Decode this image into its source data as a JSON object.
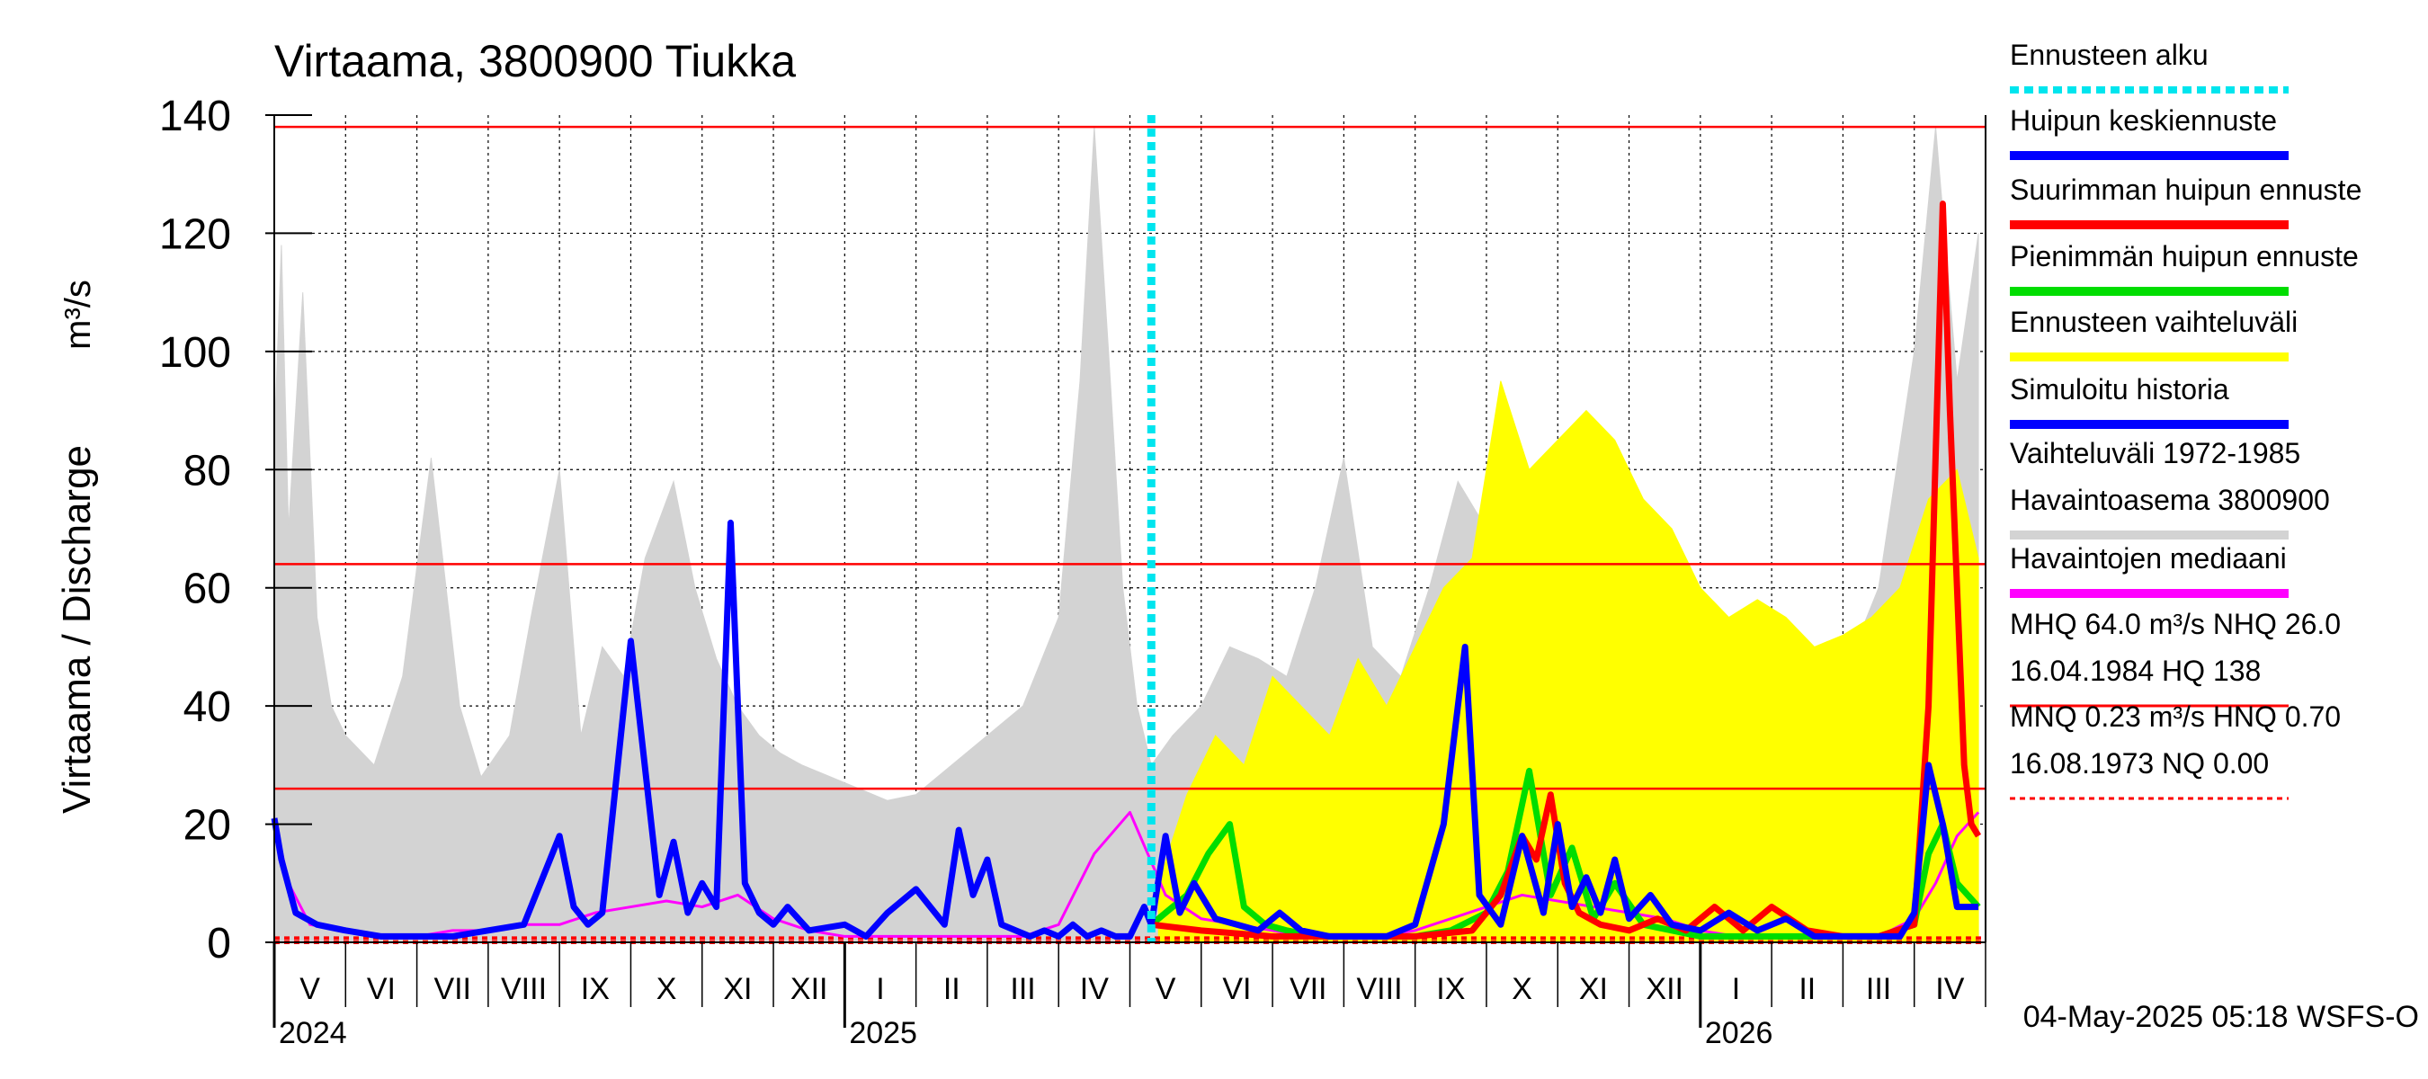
{
  "chart_data": {
    "type": "area+line",
    "title": "Virtaama, 3800900 Tiukka",
    "ylabel": "Virtaama / Discharge",
    "yunit": "m³/s",
    "ylim": [
      0,
      140
    ],
    "yticks": [
      0,
      20,
      40,
      60,
      80,
      100,
      120,
      140
    ],
    "months": [
      "V",
      "VI",
      "VII",
      "VIII",
      "IX",
      "X",
      "XI",
      "XII",
      "I",
      "II",
      "III",
      "IV",
      "V",
      "VI",
      "VII",
      "VIII",
      "IX",
      "X",
      "XI",
      "XII",
      "I",
      "II",
      "III",
      "IV"
    ],
    "years": [
      {
        "label": "2024",
        "month_index": 0
      },
      {
        "label": "2025",
        "month_index": 8
      },
      {
        "label": "2026",
        "month_index": 20
      }
    ],
    "forecast_start_month": 12.3,
    "reference_lines": [
      {
        "name": "HQ",
        "value": 138,
        "color": "#ff0000"
      },
      {
        "name": "MHQ",
        "value": 64.0,
        "color": "#ff0000"
      },
      {
        "name": "NHQ",
        "value": 26.0,
        "color": "#ff0000"
      },
      {
        "name": "HNQ",
        "value": 0.7,
        "color": "#ff0000",
        "dashed": true
      },
      {
        "name": "NQ",
        "value": 0.0,
        "color": "#ff0000",
        "dashed": true
      }
    ],
    "series": [
      {
        "name": "Vaihteluväli 1972-1985 Havaintoasema 3800900",
        "color": "#d3d3d3",
        "kind": "band",
        "x": [
          0,
          0.1,
          0.2,
          0.4,
          0.6,
          0.8,
          1.0,
          1.4,
          1.8,
          2.2,
          2.6,
          2.9,
          3.3,
          3.6,
          4.0,
          4.3,
          4.6,
          4.9,
          5.2,
          5.6,
          5.9,
          6.2,
          6.5,
          6.8,
          7.1,
          7.4,
          7.8,
          8.2,
          8.6,
          9.0,
          9.5,
          10.0,
          10.5,
          11.0,
          11.3,
          11.5,
          11.7,
          11.9,
          12.1,
          12.3,
          12.6,
          13.0,
          13.4,
          13.8,
          14.2,
          14.6,
          15.0,
          15.4,
          15.8,
          16.2,
          16.6,
          17.0,
          17.4,
          17.8,
          18.2,
          18.6,
          19.0,
          19.4,
          19.8,
          20.2,
          20.6,
          21.0,
          21.5,
          22.0,
          22.5,
          23.0,
          23.3,
          23.6,
          23.9
        ],
        "values": [
          85,
          118,
          70,
          110,
          55,
          40,
          35,
          30,
          45,
          82,
          40,
          28,
          35,
          55,
          80,
          35,
          50,
          45,
          65,
          78,
          60,
          48,
          40,
          35,
          32,
          30,
          28,
          26,
          24,
          25,
          30,
          35,
          40,
          55,
          95,
          138,
          100,
          60,
          40,
          30,
          35,
          40,
          50,
          48,
          45,
          60,
          82,
          50,
          45,
          60,
          78,
          70,
          55,
          60,
          65,
          50,
          45,
          52,
          40,
          45,
          35,
          40,
          50,
          45,
          60,
          100,
          138,
          95,
          120
        ]
      },
      {
        "name": "Ennusteen vaihteluväli",
        "color": "#ffff00",
        "kind": "band",
        "x": [
          12.4,
          12.8,
          13.2,
          13.6,
          14.0,
          14.4,
          14.8,
          15.2,
          15.6,
          16.0,
          16.4,
          16.8,
          17.2,
          17.6,
          18.0,
          18.4,
          18.8,
          19.2,
          19.6,
          20.0,
          20.4,
          20.8,
          21.2,
          21.6,
          22.0,
          22.4,
          22.8,
          23.2,
          23.6,
          23.9
        ],
        "values": [
          10,
          25,
          35,
          30,
          45,
          40,
          35,
          48,
          40,
          50,
          60,
          65,
          95,
          80,
          85,
          90,
          85,
          75,
          70,
          60,
          55,
          58,
          55,
          50,
          52,
          55,
          60,
          75,
          80,
          65
        ]
      },
      {
        "name": "Havaintojen mediaani",
        "color": "#ff00ff",
        "kind": "line",
        "x": [
          0,
          0.2,
          0.5,
          1.0,
          1.5,
          2.0,
          2.5,
          3.0,
          3.5,
          4.0,
          4.5,
          5.0,
          5.5,
          6.0,
          6.5,
          7.0,
          7.5,
          8.0,
          8.5,
          9.0,
          9.5,
          10.0,
          10.5,
          11.0,
          11.5,
          12.0,
          12.5,
          13.0,
          13.5,
          14.0,
          14.5,
          15.0,
          15.5,
          16.0,
          16.5,
          17.0,
          17.5,
          18.0,
          18.5,
          19.0,
          19.5,
          20.0,
          20.5,
          21.0,
          21.5,
          22.0,
          22.5,
          23.0,
          23.3,
          23.6,
          23.9
        ],
        "values": [
          21,
          10,
          3,
          2,
          1,
          1,
          2,
          2,
          3,
          3,
          5,
          6,
          7,
          6,
          8,
          4,
          2,
          1,
          1,
          1,
          1,
          1,
          1,
          3,
          15,
          22,
          8,
          4,
          3,
          2,
          1,
          1,
          1,
          2,
          4,
          6,
          8,
          7,
          6,
          5,
          4,
          2,
          1,
          1,
          1,
          1,
          1,
          4,
          10,
          18,
          22
        ]
      },
      {
        "name": "Simuloitu historia",
        "color": "#0000ff",
        "kind": "line",
        "x": [
          0,
          0.1,
          0.3,
          0.6,
          1.0,
          1.5,
          2.0,
          2.5,
          3.0,
          3.5,
          4.0,
          4.2,
          4.4,
          4.6,
          5.0,
          5.4,
          5.6,
          5.8,
          6.0,
          6.2,
          6.4,
          6.6,
          6.8,
          7.0,
          7.2,
          7.5,
          8.0,
          8.3,
          8.6,
          9.0,
          9.4,
          9.6,
          9.8,
          10.0,
          10.2,
          10.4,
          10.6,
          10.8,
          11.0,
          11.2,
          11.4,
          11.6,
          11.8,
          12.0,
          12.2,
          12.3
        ],
        "values": [
          21,
          14,
          5,
          3,
          2,
          1,
          1,
          1,
          2,
          3,
          18,
          6,
          3,
          5,
          51,
          8,
          17,
          5,
          10,
          6,
          71,
          10,
          5,
          3,
          6,
          2,
          3,
          1,
          5,
          9,
          3,
          19,
          8,
          14,
          3,
          2,
          1,
          2,
          1,
          3,
          1,
          2,
          1,
          1,
          6,
          3
        ]
      },
      {
        "name": "Huipun keskiennuste",
        "color": "#0000ff",
        "kind": "line",
        "x": [
          12.3,
          12.5,
          12.7,
          12.9,
          13.2,
          13.5,
          13.8,
          14.1,
          14.4,
          14.8,
          15.2,
          15.6,
          16.0,
          16.4,
          16.7,
          16.9,
          17.2,
          17.5,
          17.8,
          18.0,
          18.2,
          18.4,
          18.6,
          18.8,
          19.0,
          19.3,
          19.6,
          20.0,
          20.4,
          20.8,
          21.2,
          21.6,
          22.0,
          22.4,
          22.8,
          23.0,
          23.2,
          23.4,
          23.6,
          23.9
        ],
        "values": [
          3,
          18,
          5,
          10,
          4,
          3,
          2,
          5,
          2,
          1,
          1,
          1,
          3,
          20,
          50,
          8,
          3,
          18,
          5,
          20,
          6,
          11,
          5,
          14,
          4,
          8,
          3,
          2,
          5,
          2,
          4,
          1,
          1,
          1,
          1,
          5,
          30,
          20,
          6,
          6
        ]
      },
      {
        "name": "Suurimman huipun ennuste",
        "color": "#ff0000",
        "kind": "line",
        "x": [
          12.3,
          13.0,
          14.0,
          15.0,
          16.0,
          16.8,
          17.2,
          17.5,
          17.7,
          17.9,
          18.1,
          18.3,
          18.6,
          19.0,
          19.4,
          19.8,
          20.2,
          20.6,
          21.0,
          21.5,
          22.0,
          22.5,
          23.0,
          23.2,
          23.4,
          23.5,
          23.6,
          23.7,
          23.8,
          23.9
        ],
        "values": [
          3,
          2,
          1,
          1,
          1,
          2,
          8,
          18,
          14,
          25,
          10,
          5,
          3,
          2,
          4,
          2,
          6,
          2,
          6,
          2,
          1,
          1,
          3,
          40,
          125,
          90,
          60,
          30,
          20,
          18
        ]
      },
      {
        "name": "Pienimmän huipun ennuste",
        "color": "#00dd00",
        "kind": "line",
        "x": [
          12.3,
          12.8,
          13.1,
          13.4,
          13.6,
          13.9,
          14.2,
          14.6,
          15.0,
          15.5,
          16.0,
          16.5,
          17.0,
          17.3,
          17.6,
          17.9,
          18.2,
          18.5,
          18.8,
          19.2,
          19.6,
          20.0,
          20.5,
          21.0,
          21.5,
          22.0,
          22.5,
          23.0,
          23.2,
          23.4,
          23.6,
          23.9
        ],
        "values": [
          3,
          8,
          15,
          20,
          6,
          3,
          2,
          1,
          1,
          1,
          1,
          2,
          5,
          12,
          29,
          8,
          16,
          4,
          10,
          3,
          2,
          1,
          1,
          1,
          1,
          1,
          1,
          3,
          15,
          20,
          10,
          6
        ]
      }
    ],
    "legend": [
      {
        "label": "Ennusteen alku",
        "color": "#00e5ee",
        "style": "dotted"
      },
      {
        "label": "Huipun keskiennuste",
        "color": "#0000ff",
        "style": "solid"
      },
      {
        "label": "Suurimman huipun ennuste",
        "color": "#ff0000",
        "style": "solid"
      },
      {
        "label": "Pienimmän huipun ennuste",
        "color": "#00dd00",
        "style": "solid"
      },
      {
        "label": "Ennusteen vaihteluväli",
        "color": "#ffff00",
        "style": "solid"
      },
      {
        "label": "Simuloitu historia",
        "color": "#0000ff",
        "style": "solid"
      },
      {
        "label": "Vaihteluväli 1972-1985",
        "label2": " Havaintoasema 3800900",
        "color": "#d3d3d3",
        "style": "solid"
      },
      {
        "label": "Havaintojen mediaani",
        "color": "#ff00ff",
        "style": "solid"
      },
      {
        "label": "MHQ 64.0 m³/s NHQ 26.0",
        "label2": "16.04.1984 HQ  138",
        "color": "#ff0000",
        "style": "thin"
      },
      {
        "label": "MNQ 0.23 m³/s HNQ 0.70",
        "label2": "16.08.1973 NQ 0.00",
        "color": "#ff0000",
        "style": "dashed"
      }
    ],
    "footer": "04-May-2025 05:18 WSFS-O"
  }
}
